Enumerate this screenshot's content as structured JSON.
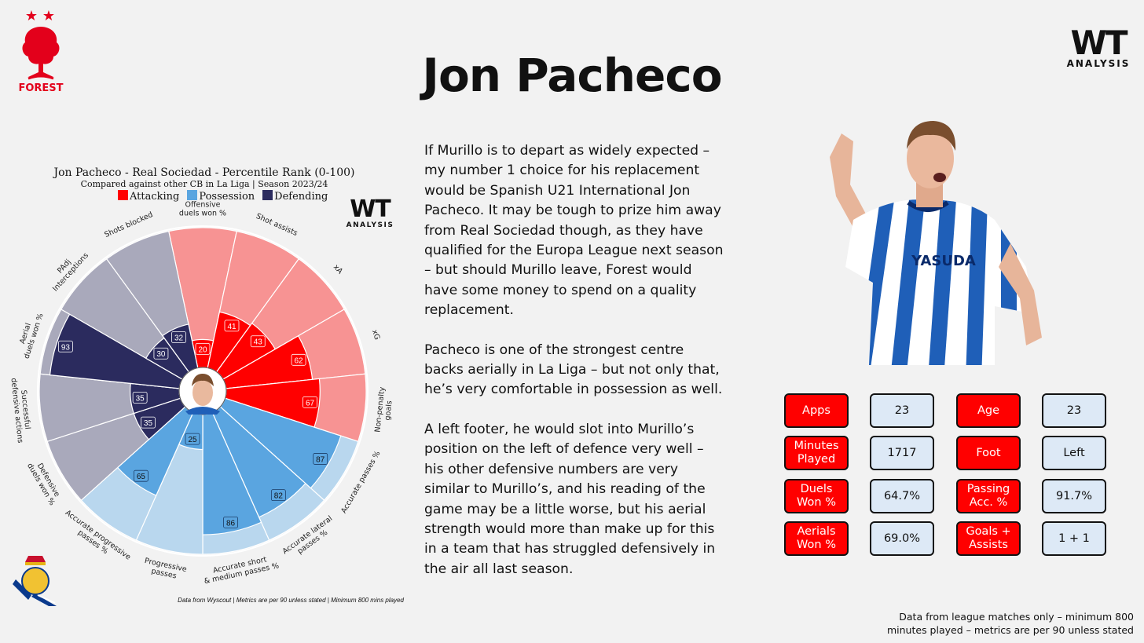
{
  "title": "Jon Pacheco",
  "logos": {
    "wt_main": "WT",
    "wt_sub": "ANALYSIS",
    "forest_text": "FOREST"
  },
  "chart_data": {
    "type": "pizza",
    "title": "Jon Pacheco - Real Sociedad - Percentile Rank (0-100)",
    "subtitle": "Compared against other CB in La Liga | Season 2023/24",
    "legend": [
      {
        "label": "Attacking",
        "color": "#ff0000"
      },
      {
        "label": "Possession",
        "color": "#5aa5e0"
      },
      {
        "label": "Defending",
        "color": "#2b2b5e"
      }
    ],
    "ylim": [
      0,
      100
    ],
    "categories": [
      {
        "label": "Offensive\nduels won %",
        "value": 20,
        "group": "Attacking"
      },
      {
        "label": "Shot assists",
        "value": 41,
        "group": "Attacking"
      },
      {
        "label": "xA",
        "value": 43,
        "group": "Attacking"
      },
      {
        "label": "xG",
        "value": 62,
        "group": "Attacking"
      },
      {
        "label": "Non-penalty\ngoals",
        "value": 67,
        "group": "Attacking"
      },
      {
        "label": "Accurate passes %",
        "value": 87,
        "group": "Possession"
      },
      {
        "label": "Accurate lateral\npasses %",
        "value": 82,
        "group": "Possession"
      },
      {
        "label": "Accurate short\n& medium passes %",
        "value": 86,
        "group": "Possession"
      },
      {
        "label": "Progressive\npasses",
        "value": 25,
        "group": "Possession"
      },
      {
        "label": "Accurate progressive\npasses %",
        "value": 65,
        "group": "Possession"
      },
      {
        "label": "Defensive\nduels won %",
        "value": 35,
        "group": "Defending"
      },
      {
        "label": "Successful\ndefensive actions",
        "value": 35,
        "group": "Defending"
      },
      {
        "label": "Aerial\nduels won %",
        "value": 93,
        "group": "Defending"
      },
      {
        "label": "PAdj\nInterceptions",
        "value": 30,
        "group": "Defending"
      },
      {
        "label": "Shots blocked",
        "value": 32,
        "group": "Defending"
      }
    ],
    "colors": {
      "Attacking": {
        "fill": "#ff0000",
        "bg": "#f79393"
      },
      "Possession": {
        "fill": "#5aa5e0",
        "bg": "#b9d7ee"
      },
      "Defending": {
        "fill": "#2b2b5e",
        "bg": "#a9a9bb"
      }
    },
    "footnote": "Data from Wyscout | Metrics are per 90 unless stated | Minimum 800 mins played"
  },
  "body_paragraphs": [
    "If Murillo is to depart as widely expected – my number 1 choice for his replacement would be Spanish U21 International Jon Pacheco. It may be tough to prize him away from Real Sociedad though, as they have qualified for the Europa League next season – but should Murillo leave, Forest would have some money to spend on a quality replacement.",
    "Pacheco is one of the strongest centre backs aerially in La Liga – but not only that, he’s very comfortable in possession as well.",
    "A left footer, he would slot into Murillo’s position on the left of defence very well – his other defensive numbers are very similar to Murillo’s, and his reading of the game may be a little worse, but his aerial strength would more than make up for this in a team that has struggled defensively in the air all last season."
  ],
  "player_photo": {
    "shirt_sponsor": "YASUDA"
  },
  "stats": [
    {
      "label": "Apps",
      "value": "23"
    },
    {
      "label": "Age",
      "value": "23"
    },
    {
      "label": "Minutes\nPlayed",
      "value": "1717"
    },
    {
      "label": "Foot",
      "value": "Left"
    },
    {
      "label": "Duels\nWon %",
      "value": "64.7%"
    },
    {
      "label": "Passing\nAcc. %",
      "value": "91.7%"
    },
    {
      "label": "Aerials\nWon %",
      "value": "69.0%"
    },
    {
      "label": "Goals +\nAssists",
      "value": "1 + 1"
    }
  ],
  "footer_note": "Data from league matches only – minimum 800 minutes played – metrics are per 90 unless stated"
}
